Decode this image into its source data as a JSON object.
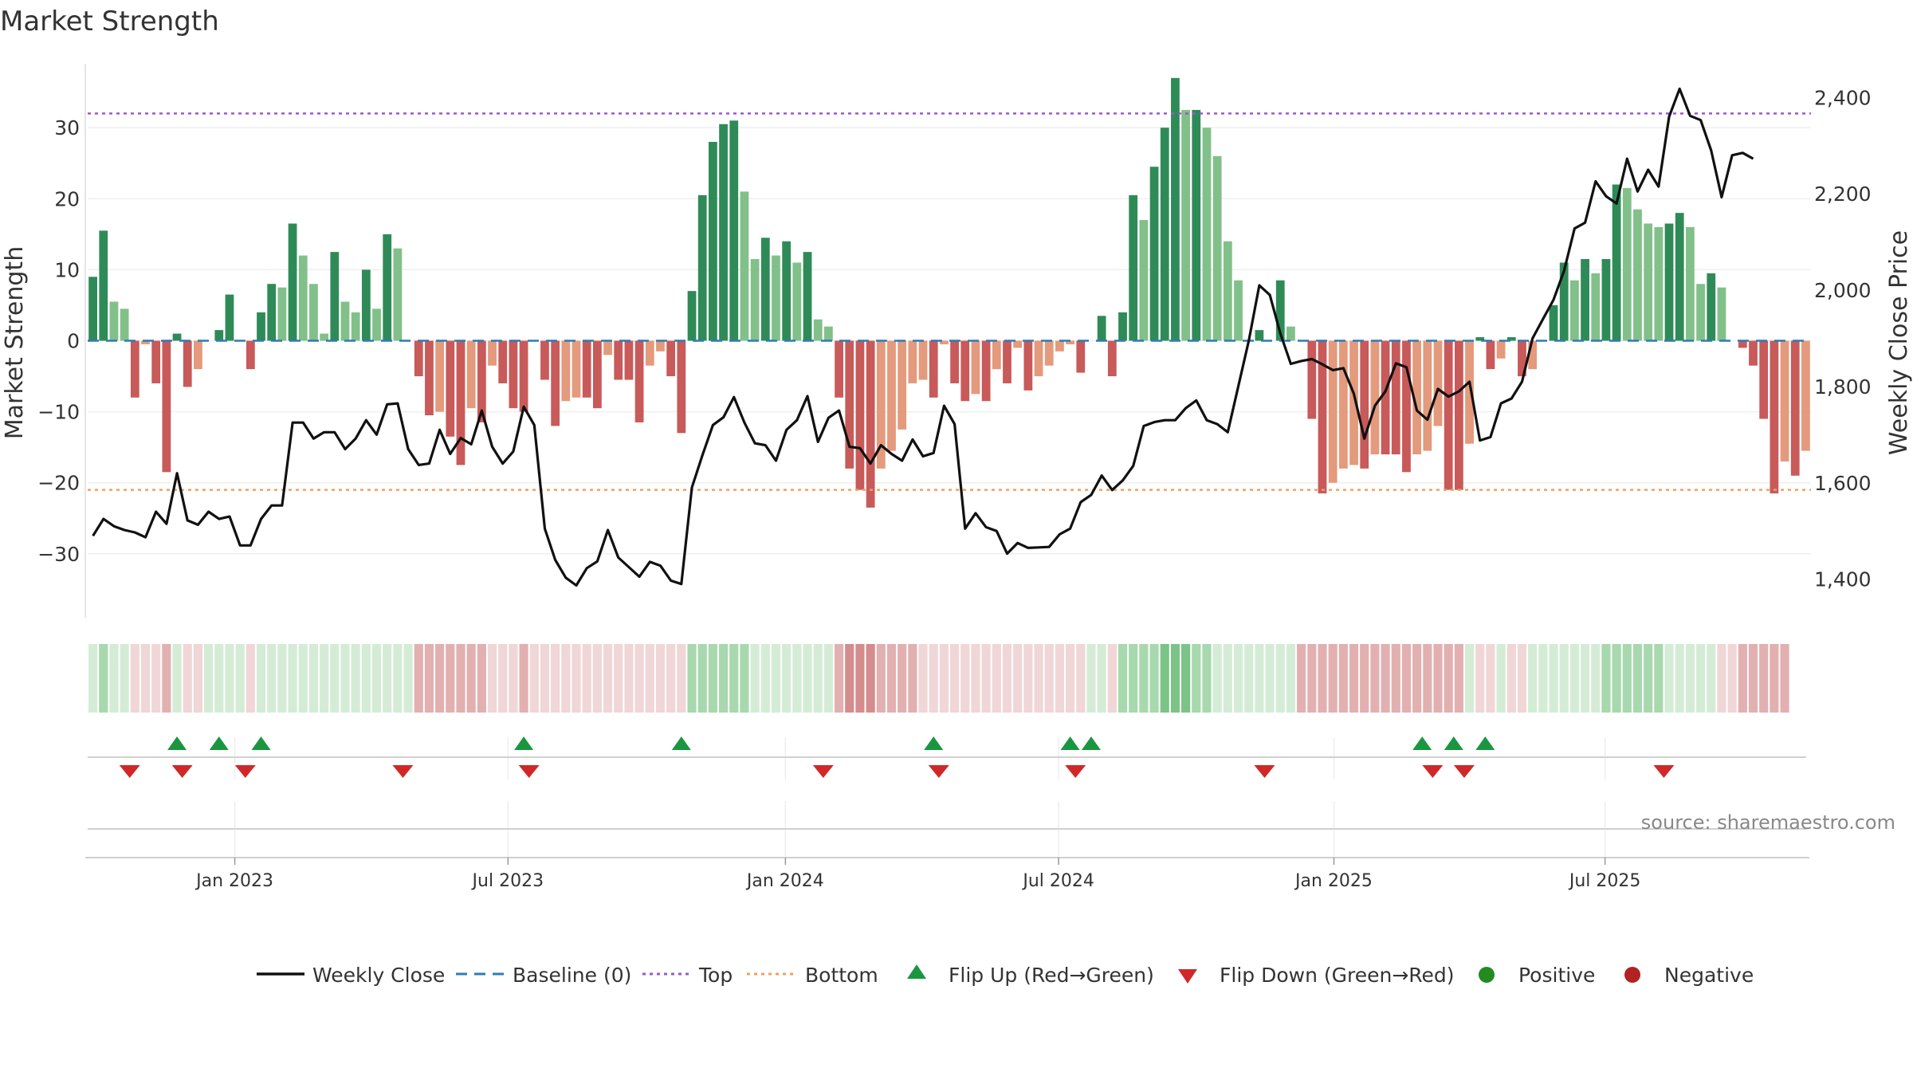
{
  "chart_data": {
    "type": "bar+line",
    "title": "Market Strength",
    "ylabel_left": "Market Strength",
    "ylabel_right": "Weekly Close Price",
    "source": "source: sharemaestro.com",
    "left_axis": {
      "ylim": [
        -39,
        39
      ],
      "ticks": [
        -30,
        -20,
        -10,
        0,
        10,
        20,
        30
      ],
      "tick_labels": [
        "−30",
        "−20",
        "−10",
        "0",
        "10",
        "20",
        "30"
      ]
    },
    "right_axis": {
      "ylim": [
        1320,
        2470
      ],
      "ticks": [
        1400,
        1600,
        1800,
        2000,
        2200,
        2400
      ],
      "tick_labels": [
        "1,400",
        "1,600",
        "1,800",
        "2,000",
        "2,200",
        "2,400"
      ]
    },
    "x_ticks": [
      "Jan 2023",
      "Jul 2023",
      "Jan 2024",
      "Jul 2024",
      "Jan 2025",
      "Jul 2025"
    ],
    "x_tick_weeks": [
      14,
      40,
      66.4,
      92.4,
      118.6,
      144.4
    ],
    "reference_lines": {
      "top": 32,
      "bottom": -21,
      "baseline": 0
    },
    "strength": [
      9,
      15.5,
      5.5,
      4.5,
      -8,
      -0.5,
      -6,
      -18.5,
      1,
      -6.5,
      -4,
      0,
      1.5,
      6.5,
      0,
      -4,
      4,
      8,
      7.5,
      16.5,
      12,
      8,
      1,
      12.5,
      5.5,
      4,
      10,
      4.5,
      15,
      13,
      0,
      -5,
      -10.5,
      -10,
      -13.5,
      -17.5,
      -9.5,
      -11.5,
      -3.5,
      -6,
      -9.5,
      -10,
      0,
      -5.5,
      -12,
      -8.5,
      -8,
      -8,
      -9.5,
      -2,
      -5.5,
      -5.5,
      -11.5,
      -3.5,
      -1.5,
      -5,
      -13,
      7,
      20.5,
      28,
      30.5,
      31,
      21,
      11.5,
      14.5,
      12,
      14,
      11,
      12.5,
      3,
      2,
      -8,
      -18,
      -21,
      -23.5,
      -18,
      -15.5,
      -12.5,
      -6,
      -5.5,
      -8,
      -0.5,
      -6,
      -8.5,
      -7.5,
      -8.5,
      -4,
      -6,
      -1,
      -7,
      -5,
      -3.5,
      -1.5,
      -0.5,
      -4.5,
      0,
      3.5,
      -5,
      4,
      20.5,
      17,
      24.5,
      30,
      37,
      32.5,
      32.5,
      30,
      26,
      14,
      8.5,
      0,
      1.5,
      0,
      8.5,
      2,
      0,
      -11,
      -21.5,
      -20,
      -18,
      -17.5,
      -18,
      -16,
      -16,
      -16,
      -18.5,
      -16,
      -15.5,
      -12,
      -21,
      -21,
      -14.5,
      0.5,
      -4,
      -2.5,
      0.5,
      -5,
      -4,
      0,
      5,
      11,
      8.5,
      11.5,
      9.5,
      11.5,
      22,
      21.5,
      18.5,
      16.5,
      16,
      16.5,
      18,
      16,
      8,
      9.5,
      7.5,
      0,
      -1,
      -3.5,
      -11,
      -21.5,
      -17,
      -19,
      -15.5
    ],
    "close": [
      1490,
      1525,
      1510,
      1502,
      1497,
      1487,
      1540,
      1515,
      1620,
      1522,
      1513,
      1540,
      1525,
      1530,
      1470,
      1470,
      1525,
      1553,
      1553,
      1725,
      1725,
      1692,
      1705,
      1705,
      1670,
      1692,
      1730,
      1700,
      1763,
      1765,
      1670,
      1637,
      1640,
      1710,
      1660,
      1693,
      1680,
      1750,
      1675,
      1640,
      1665,
      1758,
      1720,
      1505,
      1440,
      1403,
      1387,
      1423,
      1437,
      1502,
      1445,
      1425,
      1405,
      1436,
      1428,
      1397,
      1390,
      1590,
      1657,
      1720,
      1736,
      1778,
      1725,
      1682,
      1678,
      1646,
      1710,
      1730,
      1780,
      1685,
      1735,
      1750,
      1675,
      1672,
      1640,
      1678,
      1660,
      1646,
      1690,
      1655,
      1662,
      1760,
      1722,
      1505,
      1537,
      1508,
      1500,
      1453,
      1475,
      1465,
      1466,
      1467,
      1493,
      1505,
      1560,
      1575,
      1615,
      1585,
      1605,
      1635,
      1718,
      1726,
      1730,
      1730,
      1755,
      1771,
      1730,
      1722,
      1705,
      1800,
      1895,
      2010,
      1990,
      1910,
      1847,
      1853,
      1857,
      1846,
      1834,
      1838,
      1785,
      1692,
      1760,
      1790,
      1848,
      1840,
      1750,
      1731,
      1795,
      1779,
      1790,
      1810,
      1688,
      1695,
      1765,
      1775,
      1810,
      1900,
      1940,
      1980,
      2040,
      2128,
      2140,
      2226,
      2195,
      2180,
      2273,
      2205,
      2250,
      2215,
      2360,
      2418,
      2362,
      2353,
      2290,
      2193,
      2280,
      2285,
      2273
    ],
    "strip_levels": [
      1,
      2,
      1,
      1,
      -1,
      -1,
      -1,
      -2,
      1,
      -1,
      -1,
      1,
      1,
      1,
      1,
      -1,
      1,
      1,
      1,
      1,
      1,
      1,
      1,
      1,
      1,
      1,
      1,
      1,
      1,
      1,
      1,
      -2,
      -2,
      -2,
      -2,
      -2,
      -2,
      -2,
      -1,
      -1,
      -1,
      -2,
      -1,
      -1,
      -1,
      -1,
      -1,
      -1,
      -1,
      -1,
      -1,
      -1,
      -1,
      -1,
      -1,
      -1,
      -1,
      2,
      2,
      2,
      2,
      2,
      2,
      1,
      1,
      1,
      1,
      1,
      1,
      1,
      1,
      -2,
      -3,
      -3,
      -3,
      -2,
      -2,
      -2,
      -2,
      -1,
      -1,
      -1,
      -1,
      -1,
      -1,
      -1,
      -1,
      -1,
      -1,
      -1,
      -1,
      -1,
      -1,
      -1,
      -1,
      1,
      1,
      -1,
      2,
      2,
      2,
      2,
      3,
      3,
      3,
      2,
      2,
      1,
      1,
      1,
      1,
      1,
      1,
      1,
      1,
      -2,
      -2,
      -2,
      -2,
      -2,
      -2,
      -2,
      -2,
      -2,
      -2,
      -2,
      -2,
      -2,
      -2,
      -2,
      -2,
      1,
      -1,
      -1,
      1,
      -1,
      -1,
      1,
      1,
      1,
      1,
      1,
      1,
      1,
      2,
      2,
      2,
      2,
      2,
      2,
      1,
      1,
      1,
      1,
      1,
      -1,
      -1,
      -2,
      -2,
      -2,
      -2,
      -2
    ],
    "flip_up_weeks": [
      8.5,
      12.5,
      16.5,
      41.5,
      56.5,
      80.5,
      93.5,
      95.5,
      127,
      130,
      133
    ],
    "flip_down_weeks": [
      4,
      9,
      15,
      30,
      42,
      70,
      81,
      94,
      112,
      128,
      131,
      150
    ],
    "legend": [
      "Weekly Close",
      "Baseline (0)",
      "Top",
      "Bottom",
      "Flip Up (Red→Green)",
      "Flip Down (Green→Red)",
      "Positive",
      "Negative"
    ],
    "colors": {
      "pos_strong": "#2e8b57",
      "pos_weak": "#82c08a",
      "neg_strong": "#c85a5a",
      "neg_weak": "#e49a7c",
      "top": "#9b59c6",
      "bottom": "#f0a060",
      "baseline": "#2c7bb6",
      "close": "#111111",
      "flip_up": "#1a9641",
      "flip_down": "#d02828",
      "positive_dot": "#228b22",
      "negative_dot": "#b22222",
      "strip_pos": [
        "#d4ecd6",
        "#a8d8ad",
        "#7cc387",
        "#4aa860"
      ],
      "strip_neg": [
        "#f0d6d6",
        "#e2b0b0",
        "#d48c8c",
        "#c06464"
      ]
    }
  }
}
